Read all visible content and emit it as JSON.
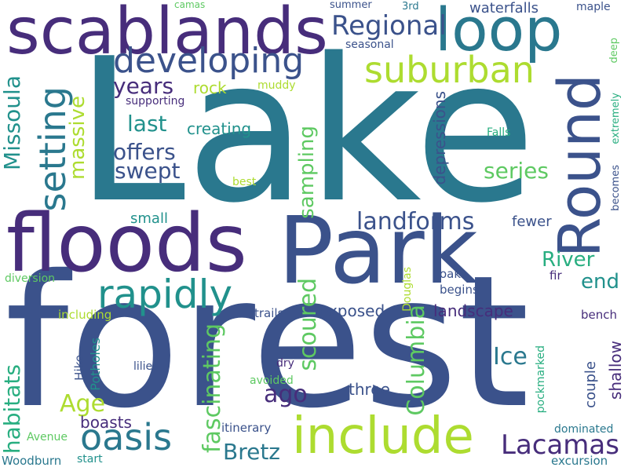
{
  "words": {
    "lake": "Lake",
    "forest": "forest",
    "park": "Park",
    "floods": "floods",
    "scablands": "scablands",
    "loop": "loop",
    "round": "Round",
    "include": "include",
    "developing": "developing",
    "suburban": "suburban",
    "setting": "setting",
    "rapidly": "rapidly",
    "oasis": "oasis",
    "regional": "Regional",
    "lacamas": "Lacamas",
    "missoula": "Missoula",
    "landforms": "landforms",
    "columbia": "Columbia",
    "fascinating": "fascinating",
    "scoured": "scoured",
    "habitats": "habitats",
    "massive": "massive",
    "sampling": "sampling",
    "offers": "offers",
    "swept": "swept",
    "years": "years",
    "last": "last",
    "series": "series",
    "river": "River",
    "end": "end",
    "ago": "ago",
    "ice": "Ice",
    "age": "Age",
    "bretz": "Bretz",
    "boasts": "boasts",
    "depressions": "depressions",
    "exposed": "exposed",
    "landscape": "landscape",
    "three": "three",
    "rock": "rock",
    "creating": "creating",
    "waterfalls": "waterfalls",
    "seasonal": "seasonal",
    "muddy": "muddy",
    "supporting": "supporting",
    "small": "small",
    "best": "best",
    "falls": "Falls",
    "fewer": "fewer",
    "oaks": "oaks",
    "fir": "fir",
    "begins": "begins",
    "bench": "bench",
    "shallow": "shallow",
    "couple": "couple",
    "dominated": "dominated",
    "excursion": "excursion",
    "pockmarked": "pockmarked",
    "douglas": "Douglas",
    "trails": "trails",
    "dry": "dry",
    "avoided": "avoided",
    "itinerary": "itinerary",
    "avenue": "Avenue",
    "woodburn": "Woodburn",
    "start": "start",
    "hike": "Hike",
    "potholes": "Potholes",
    "lilies": "lilies",
    "including": "including",
    "diversion": "diversion",
    "summer": "summer",
    "third": "3rd",
    "camas": "camas",
    "maple": "maple",
    "deep": "deep",
    "extremely": "extremely",
    "becomes": "becomes"
  },
  "colors": {
    "background": "#ffffff",
    "palette": [
      "#2a788e",
      "#3b528b",
      "#472d7b",
      "#21918c",
      "#5ec962",
      "#addc30",
      "#28ae80",
      "#440154"
    ]
  }
}
